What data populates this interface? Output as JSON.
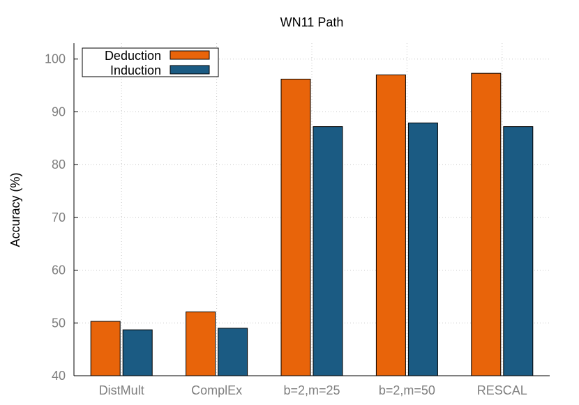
{
  "chart_data": {
    "type": "bar",
    "title": "WN11 Path",
    "xlabel": "",
    "ylabel": "Accuracy (%)",
    "ylim": [
      40,
      103
    ],
    "yticks": [
      40,
      50,
      60,
      70,
      80,
      90,
      100
    ],
    "categories": [
      "DistMult",
      "ComplEx",
      "b=2,m=25",
      "b=2,m=50",
      "RESCAL"
    ],
    "series": [
      {
        "name": "Deduction",
        "color": "#e8640a",
        "values": [
          50.3,
          52.1,
          96.2,
          97.0,
          97.3
        ]
      },
      {
        "name": "Induction",
        "color": "#1b5b83",
        "values": [
          48.7,
          49.0,
          87.2,
          87.9,
          87.2
        ]
      }
    ],
    "grid": true,
    "legend_position": "top-left"
  }
}
